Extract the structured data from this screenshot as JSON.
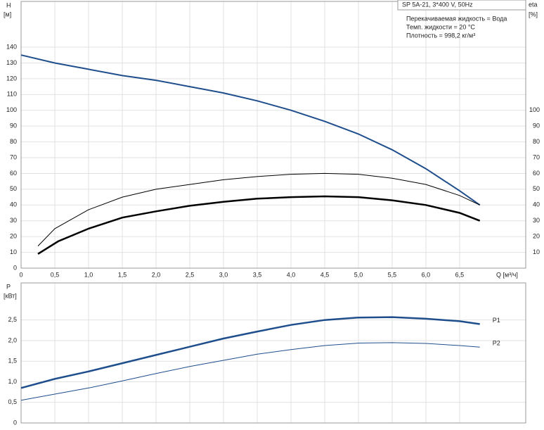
{
  "chart_data": [
    {
      "type": "line",
      "ylabel": "H",
      "ylabel_unit": "[м]",
      "y2label": "eta",
      "y2label_unit": "[%]",
      "xlabel": "Q [м³/ч]",
      "annotations": [
        "SP 5A-21, 3*400 V, 50Hz",
        "Перекачиваемая жидкость = Вода",
        "Темп. жидкости = 20 °C",
        "Плотность = 998,2 кг/м³"
      ],
      "xlim": [
        0,
        7.48
      ],
      "xticks": [
        0,
        {
          "value": 0.5,
          "label": "0,5"
        },
        {
          "value": 1,
          "label": "1,0"
        },
        {
          "value": 1.5,
          "label": "1,5"
        },
        {
          "value": 2,
          "label": "2,0"
        },
        {
          "value": 2.5,
          "label": "2,5"
        },
        {
          "value": 3,
          "label": "3,0"
        },
        {
          "value": 3.5,
          "label": "3,5"
        },
        {
          "value": 4,
          "label": "4,0"
        },
        {
          "value": 4.5,
          "label": "4,5"
        },
        {
          "value": 5,
          "label": "5,0"
        },
        {
          "value": 5.5,
          "label": "5,5"
        },
        {
          "value": 6,
          "label": "6,0"
        },
        {
          "value": 6.5,
          "label": "6,5"
        }
      ],
      "ylim": [
        0,
        169
      ],
      "yticks": [
        0,
        10,
        20,
        30,
        40,
        50,
        60,
        70,
        80,
        90,
        100,
        110,
        120,
        130,
        140
      ],
      "y2lim": [
        0,
        169
      ],
      "y2ticks": [
        10,
        20,
        30,
        40,
        50,
        60,
        70,
        80,
        90,
        100
      ],
      "grid": true,
      "series": [
        {
          "color": "#1f4e8c",
          "width": 2,
          "x": [
            0,
            0.5,
            1,
            1.5,
            2,
            2.5,
            3,
            3.5,
            4,
            4.5,
            5,
            5.5,
            6,
            6.5,
            6.8
          ],
          "values": [
            135,
            130,
            126,
            122,
            119,
            115,
            111,
            106,
            100,
            93,
            85,
            75,
            63,
            49,
            40
          ]
        },
        {
          "color": "#000000",
          "width": 1,
          "axis": "y2",
          "x": [
            0.25,
            0.5,
            1,
            1.5,
            2,
            2.5,
            3,
            3.5,
            4,
            4.5,
            5,
            5.5,
            6,
            6.5,
            6.8
          ],
          "values": [
            14,
            25,
            37,
            45,
            50,
            53,
            56,
            58,
            59.5,
            60,
            59.5,
            57,
            53,
            46,
            40
          ]
        },
        {
          "color": "#000000",
          "width": 2.5,
          "axis": "y2",
          "x": [
            0.25,
            0.55,
            1,
            1.5,
            2,
            2.5,
            3,
            3.5,
            4,
            4.5,
            5,
            5.5,
            6,
            6.5,
            6.8
          ],
          "values": [
            9,
            17,
            25,
            32,
            36,
            39.5,
            42,
            44,
            45,
            45.5,
            45,
            43,
            40,
            35,
            30
          ]
        }
      ]
    },
    {
      "type": "line",
      "ylabel": "P",
      "ylabel_unit": "[кВт]",
      "xlim": [
        0,
        7.48
      ],
      "xticks": [
        0,
        0.5,
        1,
        1.5,
        2,
        2.5,
        3,
        3.5,
        4,
        4.5,
        5,
        5.5,
        6,
        6.5
      ],
      "ylim": [
        0,
        3.4
      ],
      "yticks": [
        0,
        {
          "value": 0.5,
          "label": "0,5"
        },
        {
          "value": 1,
          "label": "1,0"
        },
        {
          "value": 1.5,
          "label": "1,5"
        },
        {
          "value": 2,
          "label": "2,0"
        },
        {
          "value": 2.5,
          "label": "2,5"
        }
      ],
      "grid": true,
      "series": [
        {
          "name": "P1",
          "color": "#1f4e8c",
          "width": 2.5,
          "x": [
            0,
            0.5,
            1,
            1.5,
            2,
            2.5,
            3,
            3.5,
            4,
            4.5,
            5,
            5.5,
            6,
            6.5,
            6.8
          ],
          "values": [
            0.85,
            1.07,
            1.25,
            1.45,
            1.65,
            1.85,
            2.05,
            2.22,
            2.38,
            2.5,
            2.56,
            2.57,
            2.53,
            2.47,
            2.4
          ]
        },
        {
          "name": "P2",
          "color": "#1f4e8c",
          "width": 1,
          "x": [
            0,
            0.5,
            1,
            1.5,
            2,
            2.5,
            3,
            3.5,
            4,
            4.5,
            5,
            5.5,
            6,
            6.5,
            6.8
          ],
          "values": [
            0.55,
            0.7,
            0.85,
            1.02,
            1.2,
            1.37,
            1.52,
            1.67,
            1.78,
            1.88,
            1.94,
            1.95,
            1.93,
            1.88,
            1.84
          ]
        }
      ]
    }
  ]
}
